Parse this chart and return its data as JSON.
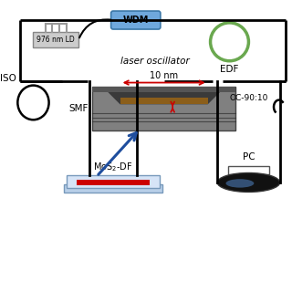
{
  "bg_color": "#ffffff",
  "wdm_label": "WDM",
  "edf_label": "EDF",
  "iso_label": "ISO",
  "oc_label": "OC-90:10",
  "smf_label": "SMF",
  "mos2_label": "MoS$_2$-DF",
  "pc_label": "PC",
  "dim_label": "10 nm",
  "ld_label": "976 nm LD",
  "oscillator_label": "laser oscillator",
  "wdm_color": "#6fa8dc",
  "wdm_edge_color": "#3c78a8",
  "edf_color": "#6aa84f",
  "fiber_color": "#000000",
  "smf_body_color": "#808080",
  "smf_dark_color": "#555555",
  "smf_darker_color": "#404040",
  "smf_darkest_color": "#303030",
  "groove_color": "#3a3a3a",
  "brown_color": "#8b5e1a",
  "red_color": "#cc0000",
  "blue_color": "#1f4e9e",
  "pc_body_color": "#111111",
  "pc_highlight_color": "#4a7ab5",
  "mos2_top_color": "#d6e4f7",
  "mos2_bot_color": "#b8cfe8",
  "ld_box_color": "#cccccc",
  "ld_box_edge": "#888888",
  "ld_pin_color": "#999999"
}
